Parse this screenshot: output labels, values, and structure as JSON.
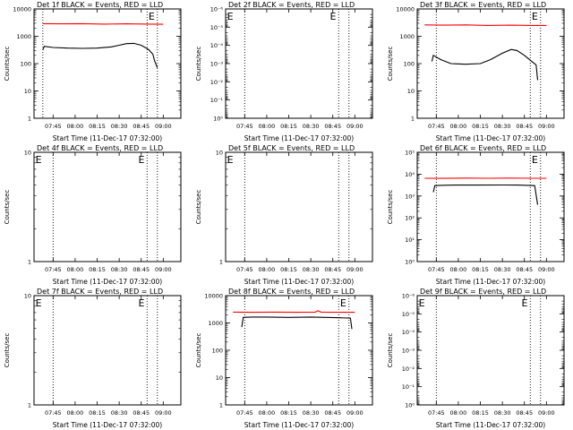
{
  "colors": {
    "events": "#000000",
    "lld": "#ff0000",
    "background": "#ffffff"
  },
  "chart_data": [
    {
      "type": "line",
      "title": "Det 1f BLACK = Events, RED = LLD",
      "ylabel": "Counts/sec",
      "xlabel": "Start Time (11-Dec-17 07:32:00)",
      "yscale": "log",
      "ylim": [
        1,
        10000
      ],
      "yticks": [
        {
          "v": 1,
          "label": "1"
        },
        {
          "v": 10,
          "label": "10"
        },
        {
          "v": 100,
          "label": "100"
        },
        {
          "v": 1000,
          "label": "1000"
        },
        {
          "v": 10000,
          "label": "10000"
        }
      ],
      "xlim": [
        "07:32",
        "09:12"
      ],
      "xticks": [
        "07:45",
        "08:00",
        "08:15",
        "08:30",
        "08:45",
        "09:00"
      ],
      "dotted_lines": [
        "07:38",
        "08:49",
        "08:56"
      ],
      "e_labels": [
        {
          "x": "08:50",
          "text": "E"
        }
      ],
      "series": [
        {
          "color": "#ff0000",
          "x": [
            "07:38",
            "07:50",
            "08:05",
            "08:20",
            "08:35",
            "08:50",
            "09:00"
          ],
          "y": [
            2900,
            2850,
            2900,
            2800,
            2850,
            2800,
            2750
          ]
        },
        {
          "color": "#000000",
          "x": [
            "07:38",
            "07:39",
            "07:45",
            "07:55",
            "08:05",
            "08:15",
            "08:25",
            "08:30",
            "08:35",
            "08:40",
            "08:45",
            "08:50",
            "08:53",
            "08:54",
            "08:56"
          ],
          "y": [
            320,
            430,
            390,
            370,
            360,
            370,
            410,
            470,
            540,
            550,
            470,
            330,
            220,
            130,
            70
          ]
        }
      ]
    },
    {
      "type": "line",
      "title": "Det 2f BLACK = Events, RED = LLD",
      "ylabel": "Counts/sec",
      "xlabel": "Start Time (11-Dec-17 07:32:00)",
      "yscale": "log",
      "ylim": [
        1,
        1e-06
      ],
      "yticks": [
        {
          "v": 1e-06,
          "label": "10⁻⁶"
        },
        {
          "v": 1e-05,
          "label": "10⁻⁵"
        },
        {
          "v": 0.0001,
          "label": "10⁻⁴"
        },
        {
          "v": 0.001,
          "label": "10⁻³"
        },
        {
          "v": 0.01,
          "label": "10⁻²"
        },
        {
          "v": 0.1,
          "label": "10⁻¹"
        },
        {
          "v": 1,
          "label": "10⁰"
        }
      ],
      "xlim": [
        "07:32",
        "09:12"
      ],
      "xticks": [
        "07:45",
        "08:00",
        "08:15",
        "08:30",
        "08:45",
        "09:00"
      ],
      "dotted_lines": [
        "07:45",
        "08:49",
        "08:56"
      ],
      "e_labels": [
        {
          "x": "07:33",
          "text": "E"
        },
        {
          "x": "08:43",
          "text": "E"
        }
      ],
      "series": []
    },
    {
      "type": "line",
      "title": "Det 3f BLACK = Events, RED = LLD",
      "ylabel": "Counts/sec",
      "xlabel": "Start Time (11-Dec-17 07:32:00)",
      "yscale": "log",
      "ylim": [
        1,
        10000
      ],
      "yticks": [
        {
          "v": 1,
          "label": "1"
        },
        {
          "v": 10,
          "label": "10"
        },
        {
          "v": 100,
          "label": "100"
        },
        {
          "v": 1000,
          "label": "1000"
        },
        {
          "v": 10000,
          "label": "10000"
        }
      ],
      "xlim": [
        "07:32",
        "09:12"
      ],
      "xticks": [
        "07:45",
        "08:00",
        "08:15",
        "08:30",
        "08:45",
        "09:00"
      ],
      "dotted_lines": [
        "07:45",
        "08:49",
        "08:56"
      ],
      "e_labels": [
        {
          "x": "08:50",
          "text": "E"
        }
      ],
      "series": [
        {
          "color": "#ff0000",
          "x": [
            "07:37",
            "07:50",
            "08:05",
            "08:20",
            "08:35",
            "08:50",
            "09:00"
          ],
          "y": [
            2600,
            2550,
            2600,
            2500,
            2550,
            2500,
            2500
          ]
        },
        {
          "color": "#000000",
          "x": [
            "07:42",
            "07:43",
            "07:48",
            "07:55",
            "08:05",
            "08:15",
            "08:22",
            "08:30",
            "08:36",
            "08:40",
            "08:45",
            "08:50",
            "08:53",
            "08:54"
          ],
          "y": [
            120,
            200,
            140,
            100,
            95,
            100,
            140,
            240,
            330,
            300,
            200,
            120,
            90,
            25
          ]
        }
      ]
    },
    {
      "type": "line",
      "title": "Det 4f BLACK = Events, RED = LLD",
      "ylabel": "Counts/sec",
      "xlabel": "Start Time (11-Dec-17 07:32:00)",
      "yscale": "log",
      "ylim": [
        1,
        10
      ],
      "yticks": [
        {
          "v": 1,
          "label": "1"
        },
        {
          "v": 10,
          "label": "10"
        }
      ],
      "xlim": [
        "07:32",
        "09:12"
      ],
      "xticks": [
        "07:45",
        "08:00",
        "08:15",
        "08:30",
        "08:45",
        "09:00"
      ],
      "dotted_lines": [
        "07:45",
        "08:49",
        "08:56"
      ],
      "e_labels": [
        {
          "x": "07:33",
          "text": "E"
        },
        {
          "x": "08:43",
          "text": "E"
        }
      ],
      "series": []
    },
    {
      "type": "line",
      "title": "Det 5f BLACK = Events, RED = LLD",
      "ylabel": "Counts/sec",
      "xlabel": "Start Time (11-Dec-17 07:32:00)",
      "yscale": "log",
      "ylim": [
        1,
        10
      ],
      "yticks": [
        {
          "v": 1,
          "label": "1"
        },
        {
          "v": 10,
          "label": "10"
        }
      ],
      "xlim": [
        "07:32",
        "09:12"
      ],
      "xticks": [
        "07:45",
        "08:00",
        "08:15",
        "08:30",
        "08:45",
        "09:00"
      ],
      "dotted_lines": [
        "07:45",
        "08:49",
        "08:56"
      ],
      "e_labels": [
        {
          "x": "07:33",
          "text": "E"
        }
      ],
      "series": []
    },
    {
      "type": "line",
      "title": "Det 6f BLACK = Events, RED = LLD",
      "ylabel": "Counts/sec",
      "xlabel": "Start Time (11-Dec-17 07:32:00)",
      "yscale": "log",
      "ylim": [
        1,
        100000
      ],
      "yticks": [
        {
          "v": 1,
          "label": "10⁰"
        },
        {
          "v": 10,
          "label": "10¹"
        },
        {
          "v": 100,
          "label": "10²"
        },
        {
          "v": 1000,
          "label": "10³"
        },
        {
          "v": 10000,
          "label": "10⁴"
        },
        {
          "v": 100000,
          "label": "10⁵"
        }
      ],
      "xlim": [
        "07:32",
        "09:12"
      ],
      "xticks": [
        "07:45",
        "08:00",
        "08:15",
        "08:30",
        "08:45",
        "09:00"
      ],
      "dotted_lines": [
        "07:45",
        "08:49",
        "08:56"
      ],
      "e_labels": [
        {
          "x": "08:50",
          "text": "E"
        }
      ],
      "series": [
        {
          "color": "#ff0000",
          "x": [
            "07:37",
            "07:50",
            "08:05",
            "08:20",
            "08:35",
            "08:50",
            "09:00"
          ],
          "y": [
            6500,
            6400,
            6600,
            6500,
            6600,
            6500,
            6500
          ]
        },
        {
          "color": "#000000",
          "x": [
            "07:43",
            "07:44",
            "07:50",
            "08:00",
            "08:15",
            "08:30",
            "08:40",
            "08:45",
            "08:52",
            "08:54"
          ],
          "y": [
            1500,
            3000,
            3100,
            3200,
            3150,
            3200,
            3150,
            3100,
            3000,
            400
          ]
        }
      ]
    },
    {
      "type": "line",
      "title": "Det 7f BLACK = Events, RED = LLD",
      "ylabel": "Counts/sec",
      "xlabel": "Start Time (11-Dec-17 07:32:00)",
      "yscale": "log",
      "ylim": [
        1,
        10
      ],
      "yticks": [
        {
          "v": 1,
          "label": "1"
        },
        {
          "v": 10,
          "label": "10"
        }
      ],
      "xlim": [
        "07:32",
        "09:12"
      ],
      "xticks": [
        "07:45",
        "08:00",
        "08:15",
        "08:30",
        "08:45",
        "09:00"
      ],
      "dotted_lines": [
        "07:45",
        "08:49",
        "08:56"
      ],
      "e_labels": [
        {
          "x": "07:33",
          "text": "E"
        },
        {
          "x": "08:43",
          "text": "E"
        }
      ],
      "series": []
    },
    {
      "type": "line",
      "title": "Det 8f BLACK = Events, RED = LLD",
      "ylabel": "Counts/sec",
      "xlabel": "Start Time (11-Dec-17 07:32:00)",
      "yscale": "log",
      "ylim": [
        1,
        10000
      ],
      "yticks": [
        {
          "v": 1,
          "label": "1"
        },
        {
          "v": 10,
          "label": "10"
        },
        {
          "v": 100,
          "label": "100"
        },
        {
          "v": 1000,
          "label": "1000"
        },
        {
          "v": 10000,
          "label": "10000"
        }
      ],
      "xlim": [
        "07:32",
        "09:12"
      ],
      "xticks": [
        "07:45",
        "08:00",
        "08:15",
        "08:30",
        "08:45",
        "09:00"
      ],
      "dotted_lines": [
        "07:45",
        "08:49",
        "08:56"
      ],
      "e_labels": [
        {
          "x": "08:50",
          "text": "E"
        }
      ],
      "series": [
        {
          "color": "#ff0000",
          "x": [
            "07:37",
            "07:50",
            "08:05",
            "08:20",
            "08:33",
            "08:35",
            "08:37",
            "08:50",
            "09:00"
          ],
          "y": [
            2500,
            2450,
            2500,
            2450,
            2500,
            2800,
            2500,
            2450,
            2450
          ]
        },
        {
          "color": "#000000",
          "x": [
            "07:43",
            "07:44",
            "07:50",
            "08:00",
            "08:15",
            "08:30",
            "08:40",
            "08:50",
            "08:57",
            "08:58"
          ],
          "y": [
            700,
            1600,
            1650,
            1650,
            1600,
            1650,
            1600,
            1550,
            1500,
            600
          ]
        }
      ]
    },
    {
      "type": "line",
      "title": "Det 9f BLACK = Events, RED = LLD",
      "ylabel": "Counts/sec",
      "xlabel": "Start Time (11-Dec-17 07:32:00)",
      "yscale": "log",
      "ylim": [
        1,
        1e-06
      ],
      "yticks": [
        {
          "v": 1e-06,
          "label": "10⁻⁶"
        },
        {
          "v": 1e-05,
          "label": "10⁻⁵"
        },
        {
          "v": 0.0001,
          "label": "10⁻⁴"
        },
        {
          "v": 0.001,
          "label": "10⁻³"
        },
        {
          "v": 0.01,
          "label": "10⁻²"
        },
        {
          "v": 0.1,
          "label": "10⁻¹"
        },
        {
          "v": 1,
          "label": "10⁰"
        }
      ],
      "xlim": [
        "07:32",
        "09:12"
      ],
      "xticks": [
        "07:45",
        "08:00",
        "08:15",
        "08:30",
        "08:45",
        "09:00"
      ],
      "dotted_lines": [
        "07:45",
        "08:49",
        "08:56"
      ],
      "e_labels": [
        {
          "x": "07:33",
          "text": "E"
        },
        {
          "x": "08:43",
          "text": "E"
        }
      ],
      "series": []
    }
  ]
}
